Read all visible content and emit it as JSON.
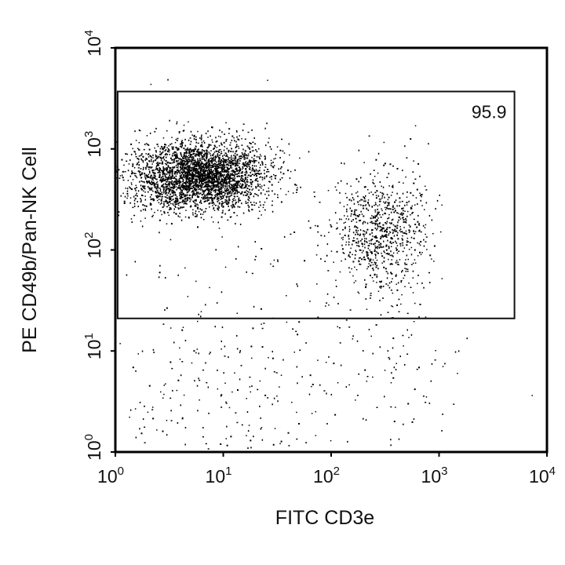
{
  "chart_data": {
    "type": "scatter",
    "subtype": "flow-cytometry-dot-plot",
    "xlabel": "FITC CD3e",
    "ylabel": "PE CD49b/Pan-NK Cell",
    "x_scale": "log",
    "y_scale": "log",
    "xlim": [
      1,
      10000
    ],
    "ylim": [
      1,
      10000
    ],
    "x_ticks": [
      {
        "value": 1,
        "base": "10",
        "exp": "0"
      },
      {
        "value": 10,
        "base": "10",
        "exp": "1"
      },
      {
        "value": 100,
        "base": "10",
        "exp": "2"
      },
      {
        "value": 1000,
        "base": "10",
        "exp": "3"
      },
      {
        "value": 10000,
        "base": "10",
        "exp": "4"
      }
    ],
    "y_ticks": [
      {
        "value": 1,
        "base": "10",
        "exp": "0"
      },
      {
        "value": 10,
        "base": "10",
        "exp": "1"
      },
      {
        "value": 100,
        "base": "10",
        "exp": "2"
      },
      {
        "value": 1000,
        "base": "10",
        "exp": "3"
      },
      {
        "value": 10000,
        "base": "10",
        "exp": "4"
      }
    ],
    "grid": false,
    "legend": "none",
    "gate": {
      "label": "95.9",
      "x_range": [
        1.05,
        5000
      ],
      "y_range": [
        21,
        3700
      ]
    },
    "populations": [
      {
        "center": [
          6,
          550
        ],
        "spread_log": [
          0.32,
          0.17
        ],
        "points": 3200
      },
      {
        "center": [
          280,
          150
        ],
        "spread_log": [
          0.22,
          0.3
        ],
        "points": 800
      },
      {
        "center": [
          15,
          60
        ],
        "spread_log": [
          0.9,
          0.8
        ],
        "points": 160
      },
      {
        "center": [
          8,
          3
        ],
        "spread_log": [
          0.55,
          0.45
        ],
        "points": 200
      },
      {
        "center": [
          300,
          6
        ],
        "spread_log": [
          0.35,
          0.45
        ],
        "points": 90
      }
    ],
    "point_color": "#000000"
  }
}
